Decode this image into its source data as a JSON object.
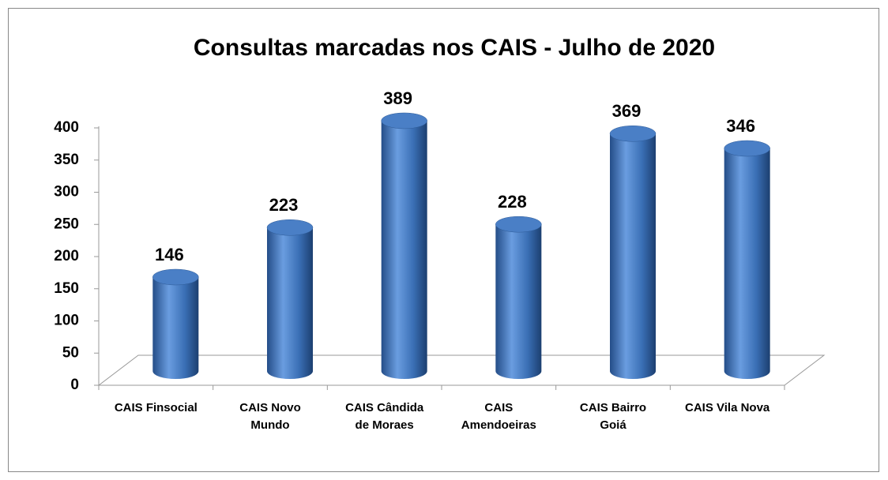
{
  "chart_data": {
    "type": "bar",
    "title": "Consultas marcadas nos CAIS - Julho de 2020",
    "categories": [
      "CAIS Finsocial",
      "CAIS Novo\nMundo",
      "CAIS Cândida\nde Moraes",
      "CAIS\nAmendoeiras",
      "CAIS Bairro\nGoiá",
      "CAIS Vila Nova"
    ],
    "values": [
      146,
      223,
      389,
      228,
      369,
      346
    ],
    "color": "#3a6fb5",
    "ylim": [
      0,
      400
    ],
    "yticks": [
      0,
      50,
      100,
      150,
      200,
      250,
      300,
      350,
      400
    ]
  }
}
